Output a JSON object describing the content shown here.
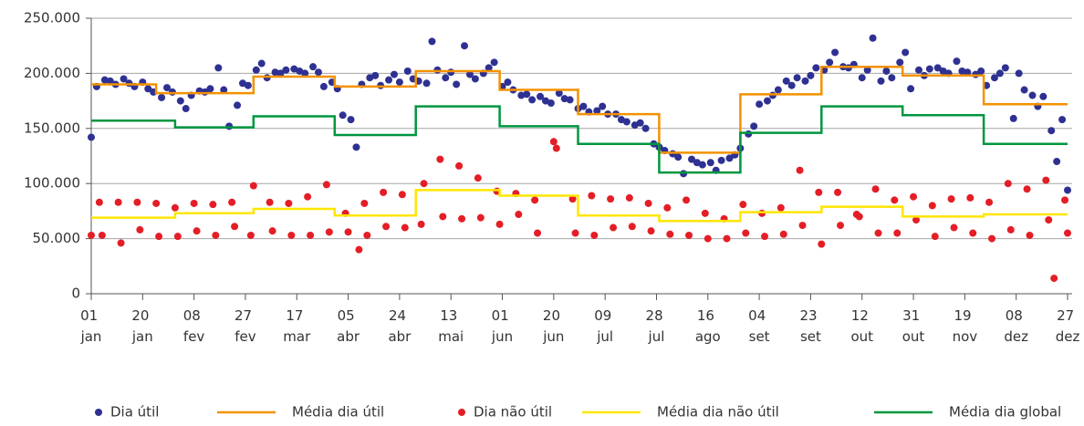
{
  "chart_data": {
    "type": "scatter",
    "xlim": [
      0,
      361
    ],
    "ylim": [
      0,
      250000
    ],
    "yticks": [
      0,
      {
        "value": 50000,
        "label": "50.000"
      },
      {
        "value": 100000,
        "label": "100.000"
      },
      {
        "value": 150000,
        "label": "150.000"
      },
      {
        "value": 200000,
        "label": "200.000"
      },
      {
        "value": 250000,
        "label": "250.000"
      }
    ],
    "xticks": [
      {
        "value": 0,
        "label": "01 jan"
      },
      {
        "value": 19,
        "label": "20 jan"
      },
      {
        "value": 38,
        "label": "08 fev"
      },
      {
        "value": 57,
        "label": "27 fev"
      },
      {
        "value": 76,
        "label": "17 mar"
      },
      {
        "value": 95,
        "label": "05 abr"
      },
      {
        "value": 114,
        "label": "24 abr"
      },
      {
        "value": 133,
        "label": "13 mai"
      },
      {
        "value": 152,
        "label": "01 jun"
      },
      {
        "value": 171,
        "label": "20 jun"
      },
      {
        "value": 190,
        "label": "09 jul"
      },
      {
        "value": 209,
        "label": "28 jul"
      },
      {
        "value": 228,
        "label": "16 ago"
      },
      {
        "value": 247,
        "label": "04 set"
      },
      {
        "value": 266,
        "label": "23 set"
      },
      {
        "value": 285,
        "label": "12 out"
      },
      {
        "value": 304,
        "label": "31 out"
      },
      {
        "value": 323,
        "label": "19 nov"
      },
      {
        "value": 342,
        "label": "08 dez"
      },
      {
        "value": 361,
        "label": "27 dez"
      }
    ],
    "grid": true,
    "series": [
      {
        "name": "Dia útil",
        "type": "scatter",
        "color": "#2e3192",
        "x": [
          0,
          2,
          5,
          7,
          9,
          12,
          14,
          16,
          19,
          21,
          23,
          26,
          28,
          30,
          33,
          35,
          37,
          40,
          42,
          44,
          47,
          49,
          51,
          54,
          56,
          58,
          61,
          63,
          65,
          68,
          70,
          72,
          75,
          77,
          79,
          82,
          84,
          86,
          89,
          91,
          93,
          96,
          98,
          100,
          103,
          105,
          107,
          110,
          112,
          114,
          117,
          119,
          121,
          124,
          126,
          128,
          131,
          133,
          135,
          138,
          140,
          142,
          145,
          147,
          149,
          152,
          154,
          156,
          159,
          161,
          163,
          166,
          168,
          170,
          173,
          175,
          177,
          180,
          182,
          184,
          187,
          189,
          191,
          194,
          196,
          198,
          201,
          203,
          205,
          208,
          210,
          212,
          215,
          217,
          219,
          222,
          224,
          226,
          229,
          231,
          233,
          236,
          238,
          240,
          243,
          245,
          247,
          250,
          252,
          254,
          257,
          259,
          261,
          264,
          266,
          268,
          271,
          273,
          275,
          278,
          280,
          282,
          285,
          287,
          289,
          292,
          294,
          296,
          299,
          301,
          303,
          306,
          308,
          310,
          313,
          315,
          317,
          320,
          322,
          324,
          327,
          329,
          331,
          334,
          336,
          338,
          341,
          343,
          345,
          348,
          350,
          352,
          355,
          357,
          359,
          361
        ],
        "values": [
          142000,
          188000,
          194000,
          193000,
          190000,
          195000,
          191000,
          188000,
          192000,
          186000,
          183000,
          178000,
          187000,
          183000,
          175000,
          168000,
          180000,
          184000,
          183000,
          186000,
          205000,
          185000,
          152000,
          171000,
          191000,
          189000,
          203000,
          209000,
          196000,
          201000,
          200000,
          203000,
          204000,
          202000,
          200000,
          206000,
          201000,
          188000,
          192000,
          186000,
          162000,
          158000,
          133000,
          190000,
          196000,
          198000,
          189000,
          194000,
          199000,
          192000,
          202000,
          195000,
          193000,
          191000,
          229000,
          203000,
          196000,
          201000,
          190000,
          225000,
          199000,
          195000,
          200000,
          205000,
          210000,
          188000,
          192000,
          185000,
          180000,
          181000,
          176000,
          179000,
          175000,
          173000,
          182000,
          177000,
          176000,
          168000,
          170000,
          165000,
          166000,
          170000,
          163000,
          163000,
          158000,
          156000,
          153000,
          155000,
          150000,
          136000,
          133000,
          130000,
          127000,
          124000,
          109000,
          122000,
          119000,
          117000,
          119000,
          112000,
          121000,
          123000,
          126000,
          132000,
          145000,
          152000,
          172000,
          175000,
          180000,
          185000,
          193000,
          189000,
          196000,
          193000,
          198000,
          205000,
          203000,
          210000,
          219000,
          206000,
          205000,
          208000,
          196000,
          203000,
          232000,
          193000,
          202000,
          196000,
          210000,
          219000,
          186000,
          203000,
          198000,
          204000,
          205000,
          202000,
          200000,
          211000,
          202000,
          201000,
          199000,
          202000,
          189000,
          196000,
          200000,
          205000,
          159000,
          200000,
          185000,
          180000,
          170000,
          179000,
          148000,
          120000,
          158000,
          94000
        ]
      },
      {
        "name": "Média dia útil",
        "type": "line",
        "color": "#f39200",
        "x": [
          0,
          24,
          24,
          60,
          60,
          90,
          90,
          120,
          120,
          151,
          151,
          180,
          180,
          210,
          210,
          240,
          240,
          270,
          270,
          300,
          300,
          330,
          330,
          361
        ],
        "values": [
          190000,
          190000,
          182000,
          182000,
          197000,
          197000,
          188000,
          188000,
          202000,
          202000,
          185000,
          185000,
          163000,
          163000,
          128000,
          128000,
          181000,
          181000,
          206000,
          206000,
          198000,
          198000,
          172000,
          172000
        ]
      },
      {
        "name": "Dia não útil",
        "type": "scatter",
        "color": "#e41e26",
        "x": [
          0,
          3,
          4,
          10,
          11,
          17,
          18,
          24,
          25,
          31,
          32,
          38,
          39,
          45,
          46,
          52,
          53,
          59,
          60,
          66,
          67,
          73,
          74,
          80,
          81,
          87,
          88,
          94,
          95,
          99,
          101,
          102,
          108,
          109,
          115,
          116,
          122,
          123,
          129,
          130,
          136,
          137,
          143,
          144,
          150,
          151,
          157,
          158,
          164,
          165,
          171,
          172,
          178,
          179,
          185,
          186,
          192,
          193,
          199,
          200,
          206,
          207,
          213,
          214,
          220,
          221,
          227,
          228,
          234,
          235,
          241,
          242,
          248,
          249,
          255,
          256,
          262,
          263,
          269,
          270,
          276,
          277,
          283,
          284,
          290,
          291,
          297,
          298,
          304,
          305,
          311,
          312,
          318,
          319,
          325,
          326,
          332,
          333,
          339,
          340,
          346,
          347,
          353,
          354,
          356,
          360,
          361
        ],
        "values": [
          53000,
          83000,
          53000,
          83000,
          46000,
          83000,
          58000,
          82000,
          52000,
          78000,
          52000,
          82000,
          57000,
          81000,
          53000,
          83000,
          61000,
          53000,
          98000,
          83000,
          57000,
          82000,
          53000,
          88000,
          53000,
          99000,
          56000,
          73000,
          56000,
          40000,
          82000,
          53000,
          92000,
          61000,
          90000,
          60000,
          63000,
          100000,
          122000,
          70000,
          116000,
          68000,
          105000,
          69000,
          93000,
          63000,
          91000,
          72000,
          85000,
          55000,
          138000,
          132000,
          86000,
          55000,
          89000,
          53000,
          86000,
          60000,
          87000,
          61000,
          82000,
          57000,
          78000,
          54000,
          85000,
          53000,
          73000,
          50000,
          68000,
          50000,
          81000,
          55000,
          73000,
          52000,
          78000,
          54000,
          112000,
          62000,
          92000,
          45000,
          92000,
          62000,
          72000,
          70000,
          95000,
          55000,
          85000,
          55000,
          88000,
          67000,
          80000,
          52000,
          86000,
          60000,
          87000,
          55000,
          83000,
          50000,
          100000,
          58000,
          95000,
          53000,
          103000,
          67000,
          14000,
          85000,
          55000
        ]
      },
      {
        "name": "Média dia não útil",
        "type": "line",
        "color": "#ffe500",
        "x": [
          0,
          31,
          31,
          60,
          60,
          90,
          90,
          120,
          120,
          151,
          151,
          180,
          180,
          210,
          210,
          240,
          240,
          270,
          270,
          300,
          300,
          330,
          330,
          361
        ],
        "values": [
          69000,
          69000,
          73000,
          73000,
          77000,
          77000,
          71000,
          71000,
          94000,
          94000,
          89000,
          89000,
          71000,
          71000,
          66000,
          66000,
          74000,
          74000,
          79000,
          79000,
          70000,
          70000,
          72000,
          72000
        ]
      },
      {
        "name": "Média dia global",
        "type": "line",
        "color": "#00963f",
        "x": [
          0,
          31,
          31,
          60,
          60,
          90,
          90,
          120,
          120,
          151,
          151,
          180,
          180,
          210,
          210,
          240,
          240,
          270,
          270,
          300,
          300,
          330,
          330,
          361
        ],
        "values": [
          157000,
          157000,
          151000,
          151000,
          161000,
          161000,
          144000,
          144000,
          170000,
          170000,
          152000,
          152000,
          136000,
          136000,
          110000,
          110000,
          146000,
          146000,
          170000,
          170000,
          162000,
          162000,
          136000,
          136000
        ]
      }
    ]
  }
}
